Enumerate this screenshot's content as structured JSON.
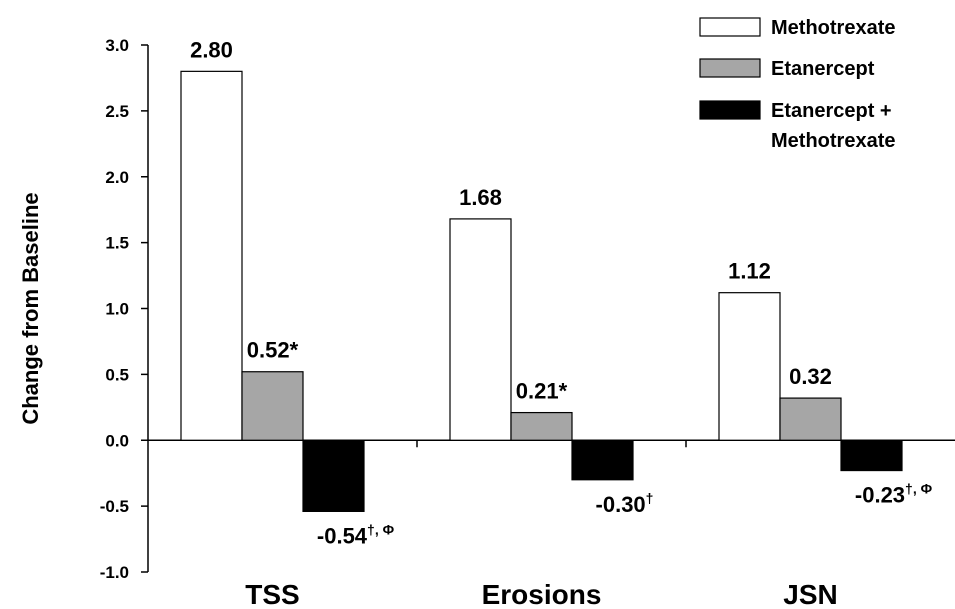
{
  "chart_data": {
    "type": "bar",
    "title": "",
    "xlabel": "",
    "ylabel": "Change from Baseline",
    "ylim": [
      -1.0,
      3.0
    ],
    "yticks": [
      "3.0",
      "2.5",
      "2.0",
      "1.5",
      "1.0",
      "0.5",
      "0.0",
      "-0.5",
      "-1.0"
    ],
    "ytick_values": [
      3.0,
      2.5,
      2.0,
      1.5,
      1.0,
      0.5,
      0.0,
      -0.5,
      -1.0
    ],
    "categories": [
      "TSS",
      "Erosions",
      "JSN"
    ],
    "grid": false,
    "legend_position": "top-right",
    "series": [
      {
        "name": "Methotrexate",
        "color": "#ffffff",
        "values": [
          2.8,
          1.68,
          1.12
        ],
        "labels": [
          {
            "text": "2.80",
            "sup": ""
          },
          {
            "text": "1.68",
            "sup": ""
          },
          {
            "text": "1.12",
            "sup": ""
          }
        ]
      },
      {
        "name": "Etanercept",
        "color": "#a6a6a6",
        "values": [
          0.52,
          0.21,
          0.32
        ],
        "labels": [
          {
            "text": "0.52*",
            "sup": ""
          },
          {
            "text": "0.21*",
            "sup": ""
          },
          {
            "text": "0.32",
            "sup": ""
          }
        ]
      },
      {
        "name": "Etanercept + Methotrexate",
        "name_lines": [
          "Etanercept +",
          "Methotrexate"
        ],
        "color": "#000000",
        "values": [
          -0.54,
          -0.3,
          -0.23
        ],
        "labels": [
          {
            "text": "-0.54",
            "sup": "†, Φ"
          },
          {
            "text": "-0.30",
            "sup": "†"
          },
          {
            "text": "-0.23",
            "sup": "†, Φ"
          }
        ]
      }
    ]
  }
}
